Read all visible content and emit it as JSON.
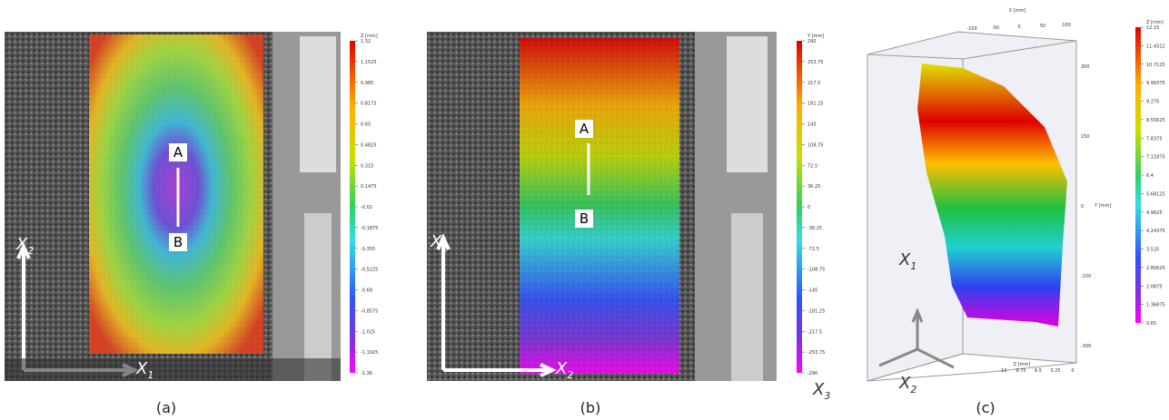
{
  "panels": [
    {
      "caption": "(a)",
      "points": [
        "A",
        "B"
      ],
      "axes": [
        {
          "symbol": "X",
          "index": "2"
        },
        {
          "symbol": "X",
          "index": "1"
        }
      ],
      "colorbar": {
        "title": "Z [mm]",
        "ticks": [
          1.32,
          1.1525,
          0.985,
          0.8175,
          0.65,
          0.4825,
          0.315,
          0.1475,
          -0.02,
          -0.1875,
          -0.355,
          -0.5225,
          -0.69,
          -0.8575,
          -1.025,
          -1.1925,
          -1.36
        ]
      }
    },
    {
      "caption": "(b)",
      "points": [
        "A",
        "B"
      ],
      "axes": [
        {
          "symbol": "X",
          "index": "1"
        },
        {
          "symbol": "X",
          "index": "2"
        }
      ],
      "colorbar": {
        "title": "Y [mm]",
        "ticks": [
          290,
          253.75,
          217.5,
          181.25,
          145,
          108.75,
          72.5,
          36.25,
          0,
          -36.25,
          -72.5,
          -108.75,
          -145,
          -181.25,
          -217.5,
          -253.75,
          -290
        ]
      }
    },
    {
      "caption": "(c)",
      "axes": [
        {
          "symbol": "X",
          "index": "1"
        },
        {
          "symbol": "X",
          "index": "3"
        },
        {
          "symbol": "X",
          "index": "2"
        }
      ],
      "plot3d": {
        "x_axis": {
          "title": "X [mm]",
          "ticks": [
            -100,
            -50,
            0,
            50,
            100
          ]
        },
        "y_axis": {
          "title": "Y [mm]",
          "ticks": [
            300,
            150,
            0,
            -150,
            -300
          ]
        },
        "z_axis": {
          "title": "Z [mm]",
          "ticks": [
            13,
            9.75,
            6.5,
            3.25,
            0
          ]
        }
      },
      "colorbar": {
        "title": "Z [mm]",
        "ticks": [
          12.15,
          11.4312,
          10.7125,
          9.99375,
          9.275,
          8.55625,
          7.8375,
          7.11875,
          6.4,
          5.68125,
          4.9625,
          4.24375,
          3.525,
          2.80625,
          2.0875,
          1.36875,
          0.65
        ]
      }
    }
  ]
}
